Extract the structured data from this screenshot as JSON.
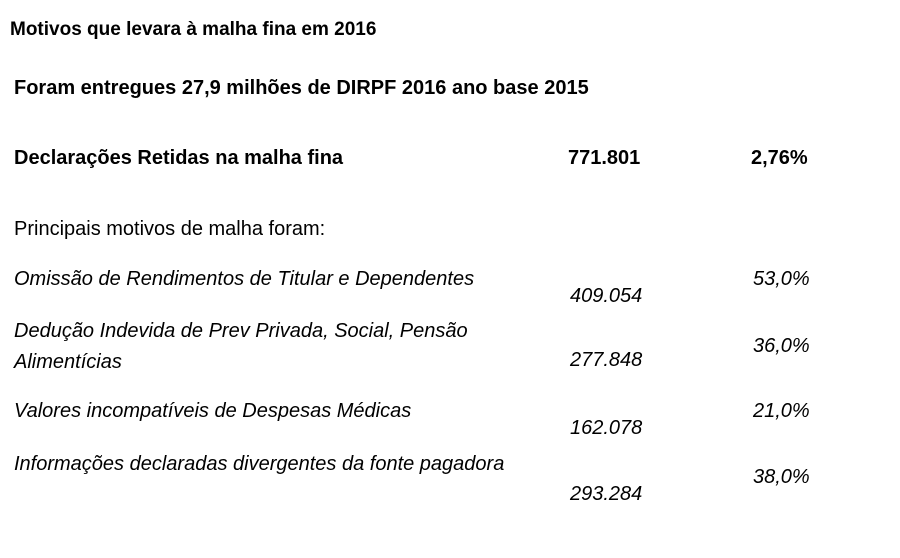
{
  "heading": "Motivos que levara à malha fina em 2016",
  "subheading": "Foram entregues 27,9 milhões de DIRPF 2016 ano base 2015",
  "summary": {
    "label": "Declarações Retidas na malha fina",
    "count": "771.801",
    "percent": "2,76%"
  },
  "intro": "Principais motivos de malha foram:",
  "reasons": [
    {
      "label": "Omissão de Rendimentos de Titular e Dependentes",
      "count": "409.054",
      "percent": "53,0%"
    },
    {
      "label": "Dedução Indevida de Prev Privada, Social, Pensão Alimentícias",
      "count": "277.848",
      "percent": "36,0%"
    },
    {
      "label": "Valores incompatíveis de Despesas Médicas",
      "count": "162.078",
      "percent": "21,0%"
    },
    {
      "label": "Informações declaradas divergentes da fonte pagadora",
      "count": "293.284",
      "percent": "38,0%"
    }
  ]
}
